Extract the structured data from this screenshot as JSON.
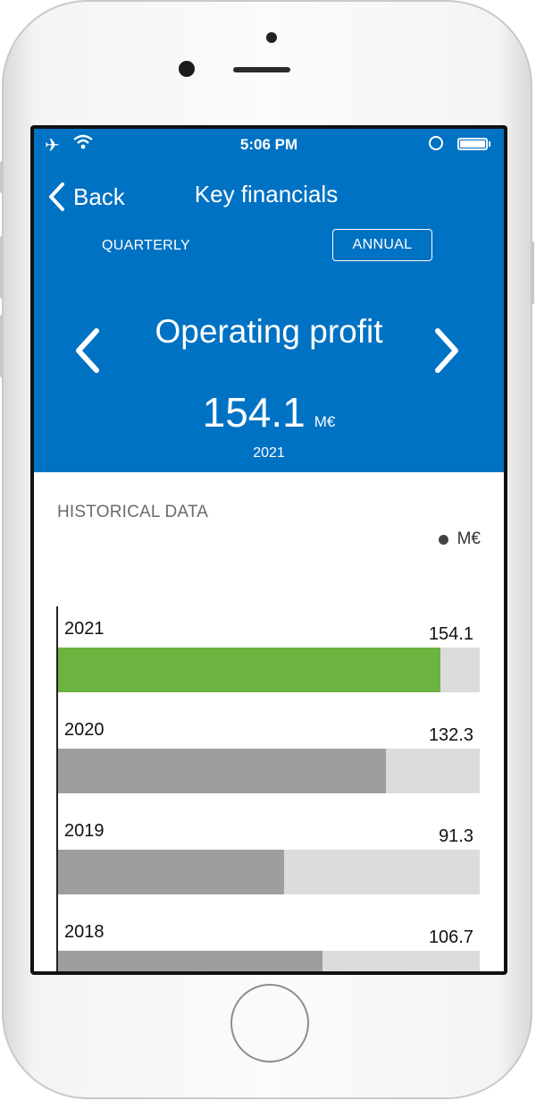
{
  "status_bar": {
    "time": "5:06 PM",
    "icons": [
      "airplane-icon",
      "wifi-icon",
      "rotation-lock-icon",
      "battery-icon"
    ]
  },
  "nav": {
    "back_label": "Back",
    "title": "Key financials"
  },
  "period_tabs": {
    "quarterly": "QUARTERLY",
    "annual": "ANNUAL",
    "selected": "annual"
  },
  "metric": {
    "name": "Operating profit",
    "value": "154.1",
    "unit": "M€",
    "year": "2021"
  },
  "history": {
    "title": "HISTORICAL DATA",
    "legend": "M€"
  },
  "colors": {
    "header_bg": "#0072c3",
    "highlight_bar": "#6db33f",
    "bar": "#9e9e9e",
    "track": "#dcdcdc"
  },
  "chart_data": {
    "type": "bar",
    "orientation": "horizontal",
    "categories": [
      "2021",
      "2020",
      "2019",
      "2018"
    ],
    "values": [
      154.1,
      132.3,
      91.3,
      106.7
    ],
    "value_labels": [
      "154.1",
      "132.3",
      "91.3",
      "106.7"
    ],
    "highlight_index": 0,
    "legend": [
      "M€"
    ],
    "xlim": [
      0,
      170
    ]
  }
}
